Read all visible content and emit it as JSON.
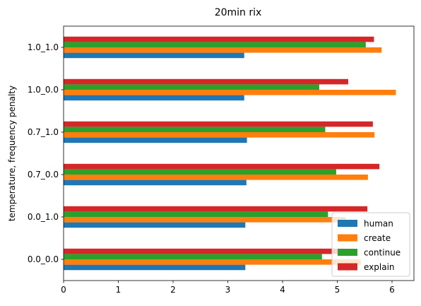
{
  "chart_data": {
    "type": "bar",
    "orientation": "horizontal",
    "title": "20min rix",
    "xlabel": "",
    "ylabel": "temperature, frequency penalty",
    "categories": [
      "0.0_0.0",
      "0.0_1.0",
      "0.7_0.0",
      "0.7_1.0",
      "1.0_0.0",
      "1.0_1.0"
    ],
    "series": [
      {
        "name": "human",
        "color": "#1f77b4",
        "values": [
          3.32,
          3.32,
          3.34,
          3.35,
          3.3,
          3.3
        ]
      },
      {
        "name": "create",
        "color": "#ff7f0e",
        "values": [
          5.43,
          5.15,
          5.56,
          5.68,
          6.07,
          5.81
        ]
      },
      {
        "name": "continue",
        "color": "#2ca02c",
        "values": [
          4.72,
          4.83,
          4.98,
          4.78,
          4.67,
          5.52
        ]
      },
      {
        "name": "explain",
        "color": "#d62728",
        "values": [
          5.15,
          5.55,
          5.77,
          5.65,
          5.2,
          5.67
        ]
      }
    ],
    "xlim": [
      0,
      6.4
    ],
    "xticks": [
      0,
      1,
      2,
      3,
      4,
      5,
      6
    ],
    "grid": false,
    "legend_position": "lower-right"
  }
}
